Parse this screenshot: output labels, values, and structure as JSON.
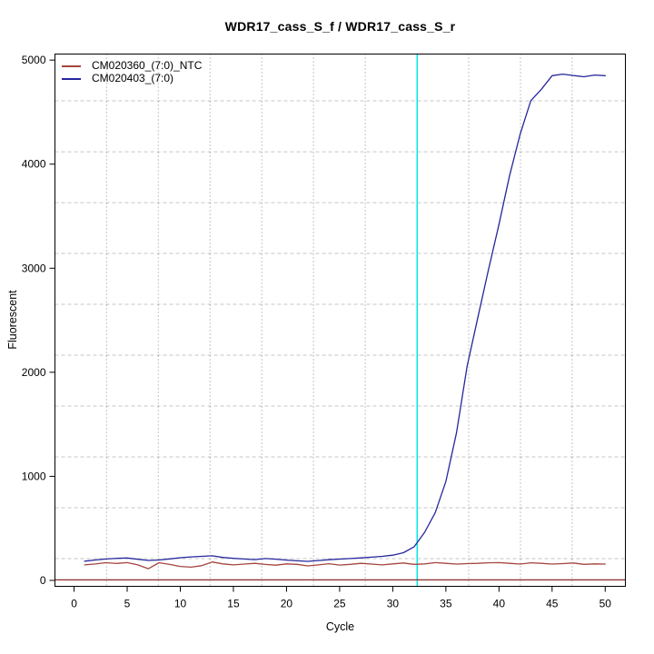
{
  "chart_data": {
    "type": "line",
    "title": "WDR17_cass_S_f / WDR17_cass_S_r",
    "xlabel": "Cycle",
    "ylabel": "Fluorescent",
    "xlim": [
      -1.8,
      51.9
    ],
    "ylim": [
      -57,
      5058
    ],
    "x_ticks": [
      0,
      5,
      10,
      15,
      20,
      25,
      30,
      35,
      40,
      45,
      50
    ],
    "y_ticks": [
      0,
      1000,
      2000,
      3000,
      4000,
      5000
    ],
    "x": [
      1,
      2,
      3,
      4,
      5,
      6,
      7,
      8,
      9,
      10,
      11,
      12,
      13,
      14,
      15,
      16,
      17,
      18,
      19,
      20,
      21,
      22,
      23,
      24,
      25,
      26,
      27,
      28,
      29,
      30,
      31,
      32,
      33,
      34,
      35,
      36,
      37,
      38,
      39,
      40,
      41,
      42,
      43,
      44,
      45,
      46,
      47,
      48,
      49,
      50
    ],
    "series": [
      {
        "name": "CM020360_(7:0)_NTC",
        "color": "#A5453F",
        "values": [
          149,
          158,
          170,
          163,
          171,
          149,
          112,
          170,
          153,
          134,
          127,
          141,
          177,
          159,
          149,
          157,
          164,
          153,
          146,
          159,
          154,
          139,
          149,
          160,
          147,
          154,
          164,
          157,
          149,
          159,
          167,
          154,
          159,
          171,
          164,
          157,
          161,
          164,
          169,
          171,
          164,
          157,
          169,
          164,
          157,
          161,
          167,
          154,
          159,
          157
        ]
      },
      {
        "name": "CM020403_(7:0)",
        "color": "#26269E",
        "values": [
          185,
          196,
          206,
          212,
          215,
          203,
          192,
          196,
          207,
          218,
          226,
          231,
          236,
          221,
          212,
          206,
          200,
          210,
          204,
          195,
          188,
          183,
          191,
          199,
          205,
          210,
          216,
          223,
          231,
          242,
          266,
          322,
          462,
          652,
          952,
          1420,
          2060,
          2520,
          2980,
          3420,
          3890,
          4290,
          4610,
          4720,
          4850,
          4865,
          4852,
          4840,
          4856,
          4850
        ]
      }
    ],
    "threshold_line": {
      "y": 5,
      "color": "#8B2A2A"
    },
    "ct_line": {
      "x": 32.3,
      "color": "#00E8E8"
    },
    "grid": {
      "vertical_x": [
        3.06,
        7.93,
        12.8,
        17.67,
        22.54,
        27.41,
        32.28,
        37.15,
        42.02,
        46.89
      ],
      "horizontal_y": [
        209,
        698,
        1187,
        1676,
        2164,
        2653,
        3142,
        3630,
        4119,
        4608
      ],
      "v_color": "#8C8C8C",
      "h_color": "#C6C6C6"
    },
    "legend_position": "top-left",
    "axis_color": "#000000",
    "background": "#FFFFFF"
  }
}
